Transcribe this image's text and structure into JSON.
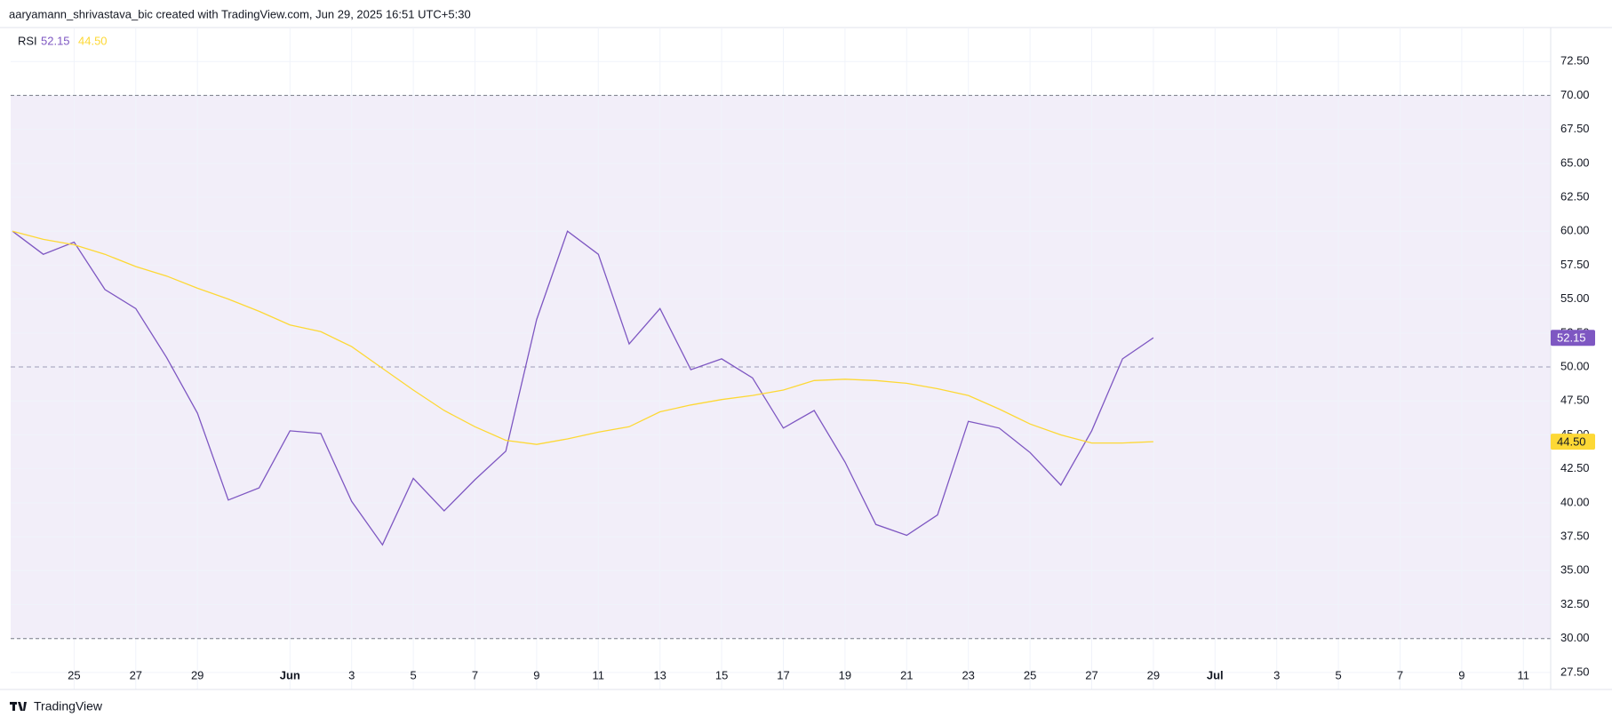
{
  "header": {
    "text": "aaryamann_shrivastava_bic created with TradingView.com, Jun 29, 2025 16:51 UTC+5:30"
  },
  "footer": {
    "brand": "TradingView"
  },
  "chart_data": {
    "type": "line",
    "legend_title": "RSI",
    "categories": [
      null,
      null,
      "25",
      null,
      "27",
      null,
      "29",
      null,
      null,
      "Jun",
      null,
      "3",
      null,
      "5",
      null,
      "7",
      null,
      "9",
      null,
      "11",
      null,
      "13",
      null,
      "15",
      null,
      "17",
      null,
      "19",
      null,
      "21",
      null,
      "23",
      null,
      "25",
      null,
      "27",
      null,
      "29",
      null,
      "Jul",
      null,
      "3",
      null,
      "5",
      null,
      "7",
      null,
      "9",
      null,
      "11"
    ],
    "series": [
      {
        "color": "#7e57c2",
        "last_label": "52.15",
        "values": [
          60.0,
          58.3,
          59.2,
          55.7,
          54.3,
          50.7,
          46.6,
          40.2,
          41.1,
          45.3,
          45.1,
          40.1,
          36.9,
          41.8,
          39.4,
          41.7,
          43.8,
          53.5,
          60.0,
          58.3,
          51.7,
          54.3,
          49.8,
          50.6,
          49.2,
          45.5,
          46.8,
          43.0,
          38.4,
          37.6,
          39.1,
          46.0,
          45.5,
          43.7,
          41.3,
          45.3,
          50.6,
          52.15,
          null,
          null,
          null,
          null,
          null,
          null,
          null,
          null,
          null,
          null,
          null,
          null
        ]
      },
      {
        "color": "#fdd835",
        "last_label": "44.50",
        "values": [
          60.0,
          59.4,
          59.0,
          58.3,
          57.4,
          56.7,
          55.8,
          55.0,
          54.1,
          53.1,
          52.6,
          51.5,
          49.9,
          48.3,
          46.8,
          45.6,
          44.6,
          44.3,
          44.7,
          45.2,
          45.6,
          46.7,
          47.2,
          47.6,
          47.9,
          48.3,
          49.0,
          49.1,
          49.0,
          48.8,
          48.4,
          47.9,
          46.9,
          45.8,
          45.0,
          44.4,
          44.4,
          44.5,
          null,
          null,
          null,
          null,
          null,
          null,
          null,
          null,
          null,
          null,
          null,
          null
        ]
      }
    ],
    "levels": [
      30,
      50,
      70
    ],
    "ylim": [
      26.25,
      75
    ],
    "yticks": [
      {
        "value": 27.5,
        "label": "27.50"
      },
      {
        "value": 30,
        "label": "30.00"
      },
      {
        "value": 32.5,
        "label": "32.50"
      },
      {
        "value": 35,
        "label": "35.00"
      },
      {
        "value": 37.5,
        "label": "37.50"
      },
      {
        "value": 40,
        "label": "40.00"
      },
      {
        "value": 42.5,
        "label": "42.50"
      },
      {
        "value": 45,
        "label": "45.00"
      },
      {
        "value": 47.5,
        "label": "47.50"
      },
      {
        "value": 50,
        "label": "50.00"
      },
      {
        "value": 52.5,
        "label": "52.50"
      },
      {
        "value": 55,
        "label": "55.00"
      },
      {
        "value": 57.5,
        "label": "57.50"
      },
      {
        "value": 60,
        "label": "60.00"
      },
      {
        "value": 62.5,
        "label": "62.50"
      },
      {
        "value": 65,
        "label": "65.00"
      },
      {
        "value": 67.5,
        "label": "67.50"
      },
      {
        "value": 70,
        "label": "70.00"
      },
      {
        "value": 72.5,
        "label": "72.50"
      }
    ],
    "grid": true
  }
}
